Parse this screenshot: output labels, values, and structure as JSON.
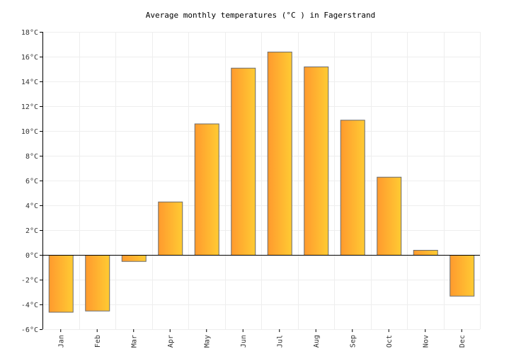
{
  "chart_data": {
    "type": "bar",
    "title": "Average monthly temperatures (°C ) in Fagerstrand",
    "xlabel": "",
    "ylabel": "",
    "categories": [
      "Jan",
      "Feb",
      "Mar",
      "Apr",
      "May",
      "Jun",
      "Jul",
      "Aug",
      "Sep",
      "Oct",
      "Nov",
      "Dec"
    ],
    "values": [
      -4.6,
      -4.5,
      -0.5,
      4.3,
      10.6,
      15.1,
      16.4,
      15.2,
      10.9,
      6.3,
      0.4,
      -3.3
    ],
    "ylim": [
      -6,
      18
    ],
    "yticks": [
      "18°C",
      "16°C",
      "14°C",
      "12°C",
      "10°C",
      "8°C",
      "6°C",
      "4°C",
      "2°C",
      "0°C",
      "-2°C",
      "-4°C",
      "-6°C"
    ],
    "grid": true,
    "legend": "none",
    "colors": {
      "bar_start": "#ff9a2e",
      "bar_end": "#ffcb33",
      "bar_stroke": "#6b6b6b",
      "grid": "#eeeeee",
      "axis": "#000000"
    }
  }
}
